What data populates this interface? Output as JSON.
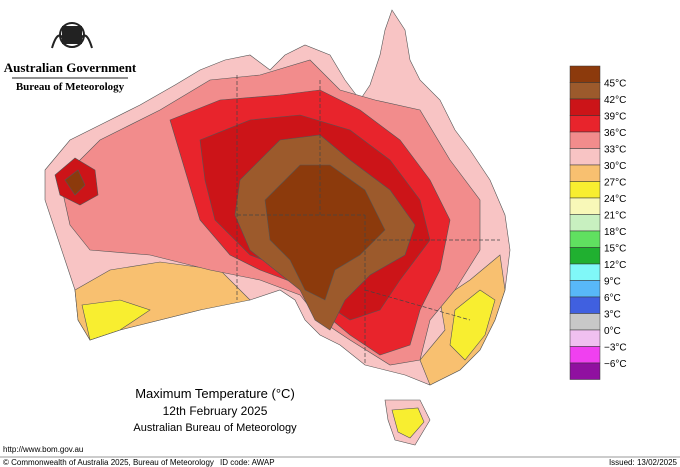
{
  "header": {
    "government": "Australian Government",
    "bureau": "Bureau of Meteorology"
  },
  "legend": {
    "labels": [
      "45°C",
      "42°C",
      "39°C",
      "36°C",
      "33°C",
      "30°C",
      "27°C",
      "24°C",
      "21°C",
      "18°C",
      "15°C",
      "12°C",
      "9°C",
      "6°C",
      "3°C",
      "0°C",
      "−3°C",
      "−6°C"
    ],
    "colors": [
      "#8c3a0c",
      "#9c5a2c",
      "#cc1418",
      "#e8242c",
      "#f28c8c",
      "#f8c4c4",
      "#f8c070",
      "#f8ee30",
      "#f8f8b8",
      "#c8f0c0",
      "#60e060",
      "#20b030",
      "#80f8f8",
      "#58b8f8",
      "#4060e0",
      "#c8c8c8",
      "#f0c0f0",
      "#f040f0",
      "#9010a0"
    ]
  },
  "caption": {
    "title": "Maximum Temperature (°C)",
    "date": "12th February 2025",
    "source": "Australian Bureau of Meteorology"
  },
  "footer": {
    "url": "http://www.bom.gov.au",
    "copyright": "© Commonwealth of Australia 2025, Bureau of Meteorology",
    "id": "ID code: AWAP",
    "issued": "Issued: 13/02/2025"
  }
}
